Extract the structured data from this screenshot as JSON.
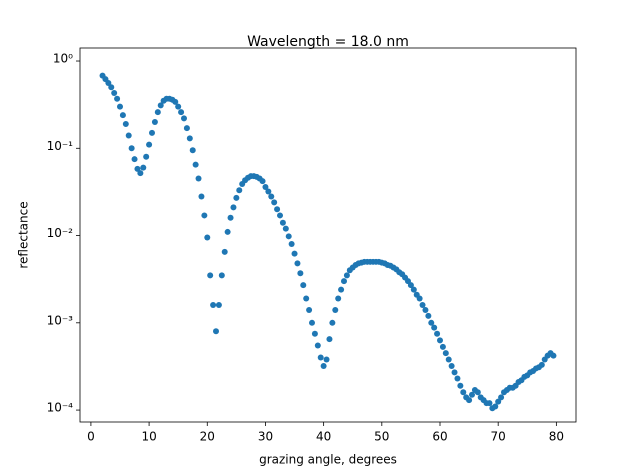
{
  "chart_data": {
    "type": "scatter",
    "title": "Wavelength = 18.0 nm",
    "xlabel": "grazing angle, degrees",
    "ylabel": "reflectance",
    "color": "#1f77b4",
    "yscale": "log",
    "xlim": [
      -1.875,
      83.375
    ],
    "xticks": [
      0,
      10,
      20,
      30,
      40,
      50,
      60,
      70,
      80
    ],
    "ylim": [
      7.3e-05,
      1.41
    ],
    "yticks": [
      {
        "value": 0.0001,
        "label": "10⁻⁴"
      },
      {
        "value": 0.001,
        "label": "10⁻³"
      },
      {
        "value": 0.01,
        "label": "10⁻²"
      },
      {
        "value": 0.1,
        "label": "10⁻¹"
      },
      {
        "value": 1,
        "label": "10⁰"
      }
    ],
    "x": [
      2,
      2.5,
      3,
      3.5,
      4,
      4.5,
      5,
      5.5,
      6,
      6.5,
      7,
      7.5,
      8,
      8.5,
      9,
      9.5,
      10,
      10.5,
      11,
      11.5,
      12,
      12.5,
      13,
      13.5,
      14,
      14.5,
      15,
      15.5,
      16,
      16.5,
      17,
      17.5,
      18,
      18.5,
      19,
      19.5,
      20,
      20.5,
      21,
      21.5,
      22,
      22.5,
      23,
      23.5,
      24,
      24.5,
      25,
      25.5,
      26,
      26.5,
      27,
      27.5,
      28,
      28.5,
      29,
      29.5,
      30,
      30.5,
      31,
      31.5,
      32,
      32.5,
      33,
      33.5,
      34,
      34.5,
      35,
      35.5,
      36,
      36.5,
      37,
      37.5,
      38,
      38.5,
      39,
      39.5,
      40,
      40.5,
      41,
      41.5,
      42,
      42.5,
      43,
      43.5,
      44,
      44.5,
      45,
      45.5,
      46,
      46.5,
      47,
      47.5,
      48,
      48.5,
      49,
      49.5,
      50,
      50.5,
      51,
      51.5,
      52,
      52.5,
      53,
      53.5,
      54,
      54.5,
      55,
      55.5,
      56,
      56.5,
      57,
      57.5,
      58,
      58.5,
      59,
      59.5,
      60,
      60.5,
      61,
      61.5,
      62,
      62.5,
      63,
      63.5,
      64,
      64.5,
      65,
      65.5,
      66,
      66.5,
      67,
      67.5,
      68,
      68.5,
      69,
      69.5,
      70,
      70.5,
      71,
      71.5,
      72,
      72.5,
      73,
      73.5,
      74,
      74.5,
      75,
      75.5,
      76,
      76.5,
      77,
      77.5,
      78,
      78.5,
      79,
      79.5
    ],
    "values": [
      0.68,
      0.62,
      0.56,
      0.5,
      0.43,
      0.37,
      0.3,
      0.24,
      0.19,
      0.14,
      0.1,
      0.075,
      0.058,
      0.052,
      0.06,
      0.08,
      0.11,
      0.15,
      0.2,
      0.26,
      0.31,
      0.35,
      0.37,
      0.37,
      0.36,
      0.34,
      0.3,
      0.26,
      0.22,
      0.17,
      0.13,
      0.095,
      0.065,
      0.045,
      0.028,
      0.017,
      0.0095,
      0.0035,
      0.0016,
      0.0008,
      0.0016,
      0.0035,
      0.0065,
      0.011,
      0.016,
      0.021,
      0.027,
      0.033,
      0.039,
      0.043,
      0.046,
      0.048,
      0.048,
      0.047,
      0.045,
      0.042,
      0.036,
      0.032,
      0.028,
      0.024,
      0.02,
      0.017,
      0.014,
      0.012,
      0.0098,
      0.008,
      0.0062,
      0.0048,
      0.0037,
      0.0027,
      0.0019,
      0.0014,
      0.001,
      0.00075,
      0.00055,
      0.0004,
      0.00032,
      0.00038,
      0.00065,
      0.001,
      0.0014,
      0.0019,
      0.0024,
      0.003,
      0.0035,
      0.004,
      0.0043,
      0.0046,
      0.0048,
      0.0049,
      0.005,
      0.005,
      0.005,
      0.005,
      0.005,
      0.005,
      0.0049,
      0.0048,
      0.0046,
      0.0045,
      0.0043,
      0.0041,
      0.0038,
      0.0036,
      0.0033,
      0.003,
      0.0027,
      0.0024,
      0.0021,
      0.0019,
      0.0016,
      0.0014,
      0.0012,
      0.001,
      0.00088,
      0.00075,
      0.00063,
      0.00053,
      0.00045,
      0.00038,
      0.00032,
      0.00027,
      0.00023,
      0.00019,
      0.00016,
      0.00014,
      0.00013,
      0.00015,
      0.00017,
      0.00016,
      0.00014,
      0.00013,
      0.00012,
      0.00012,
      0.000105,
      0.00011,
      0.000125,
      0.00014,
      0.00016,
      0.00017,
      0.00018,
      0.00018,
      0.00019,
      0.00021,
      0.00022,
      0.00024,
      0.00025,
      0.00027,
      0.00028,
      0.0003,
      0.00031,
      0.00033,
      0.00038,
      0.00042,
      0.00045,
      0.00042
    ]
  }
}
